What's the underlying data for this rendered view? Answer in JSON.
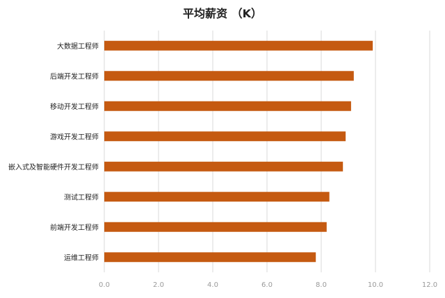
{
  "chart_data": {
    "type": "bar",
    "orientation": "horizontal",
    "title": "平均薪资 （K）",
    "xlabel": "",
    "ylabel": "",
    "categories": [
      "大数据工程师",
      "后端开发工程师",
      "移动开发工程师",
      "游戏开发工程师",
      "嵌入式及智能硬件开发工程师",
      "测试工程师",
      "前端开发工程师",
      "运维工程师"
    ],
    "values": [
      9.9,
      9.2,
      9.1,
      8.9,
      8.8,
      8.3,
      8.2,
      7.8
    ],
    "xlim": [
      0,
      12
    ],
    "xticks": [
      "0.0",
      "2.0",
      "4.0",
      "6.0",
      "8.0",
      "10.0",
      "12.0"
    ],
    "grid": "vertical",
    "legend": "none",
    "colors": {
      "bar": "#C55A11",
      "grid": "#D9D9D9",
      "text": "#222222",
      "tick": "#9a9a9a"
    }
  }
}
